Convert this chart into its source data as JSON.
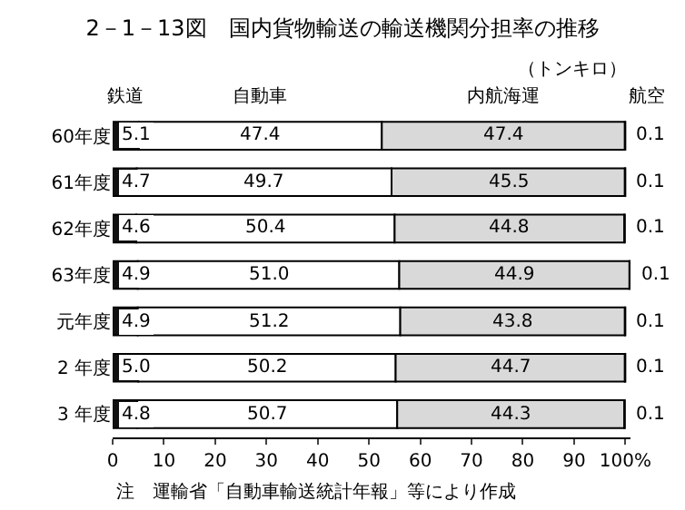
{
  "chart_data": {
    "type": "bar",
    "orientation": "horizontal",
    "stacked": true,
    "title": "2－1－13図　国内貨物輸送の輸送機関分担率の推移",
    "subtitle": "（トンキロ）",
    "annotations": [
      "注　運輸省「自動車輸送統計年報」等により作成"
    ],
    "categories": [
      "60年度",
      "61年度",
      "62年度",
      "63年度",
      "元年度",
      "2 年度",
      "3 年度"
    ],
    "series": [
      {
        "name": "鉄道",
        "color": "#111111",
        "values": [
          5.1,
          4.7,
          4.6,
          4.9,
          4.9,
          5.0,
          4.8
        ],
        "value_labels": [
          "5.1",
          "4.7",
          "4.6",
          "4.9",
          "4.9",
          "5.0",
          "4.8"
        ]
      },
      {
        "name": "自動車",
        "color": "#ffffff",
        "values": [
          47.4,
          49.7,
          50.4,
          51.0,
          51.2,
          50.2,
          50.7
        ],
        "value_labels": [
          "47.4",
          "49.7",
          "50.4",
          "51.0",
          "51.2",
          "50.2",
          "50.7"
        ]
      },
      {
        "name": "内航海運",
        "color": "#d9d9d9",
        "values": [
          47.4,
          45.5,
          44.8,
          44.9,
          43.8,
          44.7,
          44.3
        ],
        "value_labels": [
          "47.4",
          "45.5",
          "44.8",
          "44.9",
          "43.8",
          "44.7",
          "44.3"
        ]
      },
      {
        "name": "航空",
        "color": "#000000",
        "values": [
          0.1,
          0.1,
          0.1,
          0.1,
          0.1,
          0.1,
          0.1
        ],
        "value_labels": [
          "0.1",
          "0.1",
          "0.1",
          "0.1",
          "0.1",
          "0.1",
          "0.1"
        ]
      }
    ],
    "xlim": [
      0,
      101
    ],
    "xticks": [
      0,
      10,
      20,
      30,
      40,
      50,
      60,
      70,
      80,
      90,
      {
        "value": 100,
        "label": "100%"
      }
    ],
    "grid": false
  }
}
